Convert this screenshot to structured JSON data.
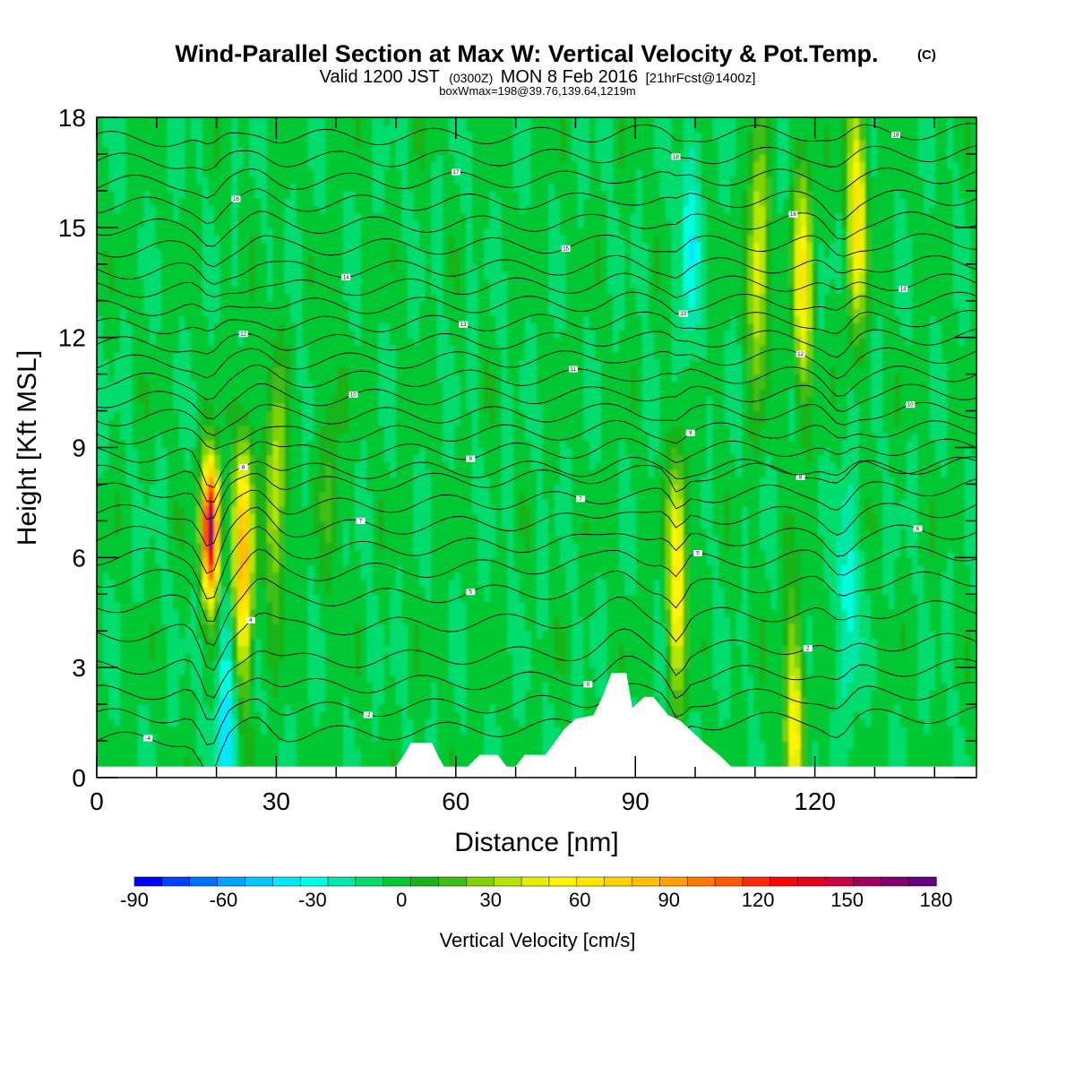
{
  "chart_data": {
    "type": "heatmap",
    "title": "Wind-Parallel Section at Max W: Vertical Velocity & Pot.Temp.",
    "title_mark": "(C)",
    "subtitle": {
      "prefix": "Valid 1200 JST",
      "zulu": "(0300Z)",
      "date": "MON 8 Feb 2016",
      "forecast": "[21hrFcst@1400z]"
    },
    "box_info": "boxWmax=198@39.76,139.64,1219m",
    "xlabel": "Distance [nm]",
    "ylabel": "Height [Kft MSL]",
    "xlim": [
      0,
      147
    ],
    "ylim": [
      0,
      18
    ],
    "x_ticks": [
      0,
      30,
      60,
      90,
      120
    ],
    "y_ticks": [
      0,
      3,
      6,
      9,
      12,
      15,
      18
    ],
    "colorbar": {
      "label": "Vertical Velocity [cm/s]",
      "min": -90,
      "max": 180,
      "step": 10,
      "tick_labels": [
        "-90",
        "-60",
        "-30",
        "0",
        "30",
        "60",
        "90",
        "120",
        "150",
        "180"
      ],
      "colors": [
        "#0000ff",
        "#0040ff",
        "#0070ff",
        "#00a0ff",
        "#00c8ff",
        "#00e8ff",
        "#00ffe0",
        "#00e8a8",
        "#00dc6e",
        "#00c832",
        "#18b418",
        "#40be18",
        "#7ed200",
        "#b4e600",
        "#e6f000",
        "#fff500",
        "#ffe600",
        "#ffd200",
        "#ffbe00",
        "#ffa000",
        "#ff7800",
        "#ff5a00",
        "#ff2800",
        "#ff0000",
        "#e6001e",
        "#c80046",
        "#a0005a",
        "#82006e",
        "#640080"
      ]
    },
    "w_features": [
      {
        "x": 19,
        "z": 6.8,
        "w": 180
      },
      {
        "x": 24.5,
        "z": 6.0,
        "w": 95
      },
      {
        "x": 21.5,
        "z": 1.2,
        "w": -40
      },
      {
        "x": 30,
        "z": 7.8,
        "w": 50
      },
      {
        "x": 39,
        "z": 8.5,
        "w": 20
      },
      {
        "x": 97,
        "z": 5.5,
        "w": 70
      },
      {
        "x": 99,
        "z": 14.5,
        "w": -30
      },
      {
        "x": 110.5,
        "z": 14.0,
        "w": 60
      },
      {
        "x": 118,
        "z": 13.5,
        "w": 65
      },
      {
        "x": 116.5,
        "z": 1.5,
        "w": 60
      },
      {
        "x": 127,
        "z": 15.5,
        "w": 70
      },
      {
        "x": 125.5,
        "z": 5.0,
        "w": -30
      }
    ],
    "terrain": [
      {
        "x": 0,
        "z": 0.3
      },
      {
        "x": 50,
        "z": 0.3
      },
      {
        "x": 51.5,
        "z": 0.65
      },
      {
        "x": 52.5,
        "z": 0.95
      },
      {
        "x": 56,
        "z": 0.95
      },
      {
        "x": 57,
        "z": 0.6
      },
      {
        "x": 58,
        "z": 0.3
      },
      {
        "x": 62,
        "z": 0.3
      },
      {
        "x": 64,
        "z": 0.62
      },
      {
        "x": 67,
        "z": 0.62
      },
      {
        "x": 68.5,
        "z": 0.3
      },
      {
        "x": 70,
        "z": 0.3
      },
      {
        "x": 71.5,
        "z": 0.62
      },
      {
        "x": 75,
        "z": 0.62
      },
      {
        "x": 76.5,
        "z": 0.95
      },
      {
        "x": 78,
        "z": 1.3
      },
      {
        "x": 80,
        "z": 1.6
      },
      {
        "x": 83,
        "z": 1.7
      },
      {
        "x": 84.5,
        "z": 2.2
      },
      {
        "x": 86,
        "z": 2.85
      },
      {
        "x": 88.5,
        "z": 2.85
      },
      {
        "x": 89.5,
        "z": 1.9
      },
      {
        "x": 91.5,
        "z": 2.2
      },
      {
        "x": 93,
        "z": 2.2
      },
      {
        "x": 95.5,
        "z": 1.7
      },
      {
        "x": 97.5,
        "z": 1.55
      },
      {
        "x": 99.5,
        "z": 1.25
      },
      {
        "x": 101.5,
        "z": 0.95
      },
      {
        "x": 104,
        "z": 0.62
      },
      {
        "x": 106,
        "z": 0.3
      },
      {
        "x": 147,
        "z": 0.3
      }
    ],
    "theta_contours": [
      {
        "level": "-4",
        "base": 1.0
      },
      {
        "level": "-2",
        "base": 1.65
      },
      {
        "level": "0",
        "base": 2.3
      },
      {
        "level": "2",
        "base": 3.0
      },
      {
        "level": "4",
        "base": 3.9
      },
      {
        "level": "5",
        "base": 4.7
      },
      {
        "level": "5",
        "base": 5.4
      },
      {
        "level": "6",
        "base": 6.0
      },
      {
        "level": "7",
        "base": 6.6
      },
      {
        "level": "7",
        "base": 7.2
      },
      {
        "level": "8",
        "base": 7.8
      },
      {
        "level": "8",
        "base": 8.3
      },
      {
        "level": "9",
        "base": 8.8
      },
      {
        "level": "9",
        "base": 9.3
      },
      {
        "level": "10",
        "base": 9.8
      },
      {
        "level": "10",
        "base": 10.3
      },
      {
        "level": "11",
        "base": 10.8
      },
      {
        "level": "12",
        "base": 11.3
      },
      {
        "level": "12",
        "base": 11.8
      },
      {
        "level": "13",
        "base": 12.3
      },
      {
        "level": "13",
        "base": 12.8
      },
      {
        "level": "14",
        "base": 13.3
      },
      {
        "level": "14",
        "base": 13.8
      },
      {
        "level": "15",
        "base": 14.4
      },
      {
        "level": "16",
        "base": 15.0
      },
      {
        "level": "16",
        "base": 15.6
      },
      {
        "level": "17",
        "base": 16.2
      },
      {
        "level": "18",
        "base": 16.8
      },
      {
        "level": "18",
        "base": 17.4
      }
    ]
  }
}
